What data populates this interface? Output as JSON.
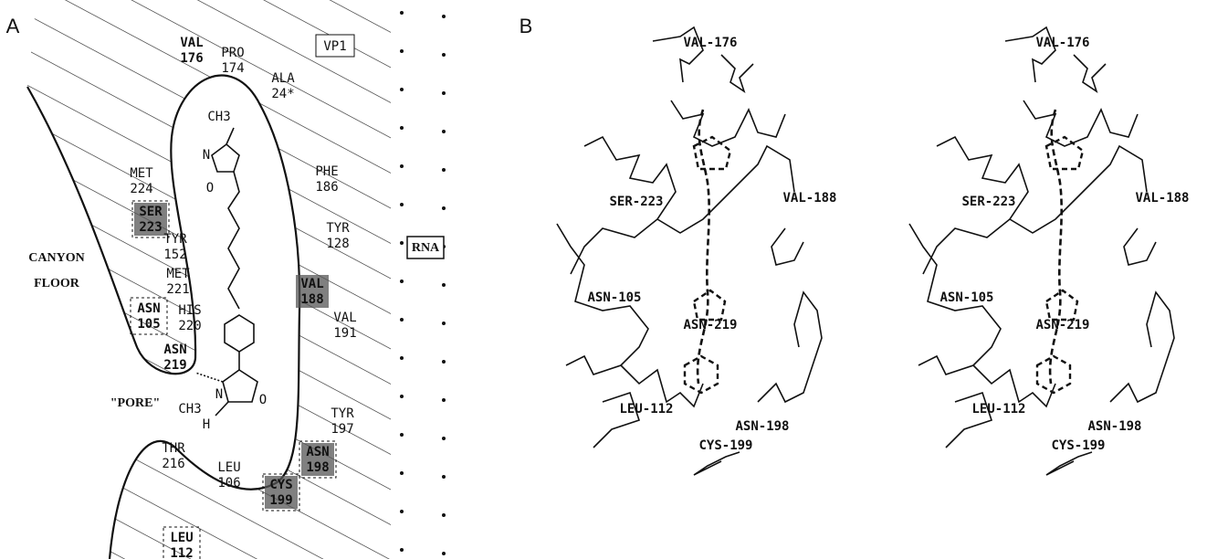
{
  "panel_a": {
    "label": "A",
    "vp1": "VP1",
    "rna": "RNA",
    "canyon_floor": [
      "CANYON",
      "FLOOR"
    ],
    "pore": "\"PORE\"",
    "residues": [
      {
        "name": "VAL",
        "number": "176"
      },
      {
        "name": "PRO",
        "number": "174"
      },
      {
        "name": "ALA",
        "number": "24*"
      },
      {
        "name": "MET",
        "number": "224"
      },
      {
        "name": "SER",
        "number": "223"
      },
      {
        "name": "TYR",
        "number": "152"
      },
      {
        "name": "MET",
        "number": "221"
      },
      {
        "name": "HIS",
        "number": "220"
      },
      {
        "name": "ASN",
        "number": "105"
      },
      {
        "name": "ASN",
        "number": "219"
      },
      {
        "name": "PHE",
        "number": "186"
      },
      {
        "name": "TYR",
        "number": "128"
      },
      {
        "name": "VAL",
        "number": "188"
      },
      {
        "name": "VAL",
        "number": "191"
      },
      {
        "name": "TYR",
        "number": "197"
      },
      {
        "name": "ASN",
        "number": "198"
      },
      {
        "name": "CYS",
        "number": "199"
      },
      {
        "name": "THR",
        "number": "216"
      },
      {
        "name": "LEU",
        "number": "106"
      },
      {
        "name": "LEU",
        "number": "112"
      }
    ],
    "atoms": [
      "CH3",
      "N",
      "O",
      "N",
      "O",
      "CH3",
      "H"
    ]
  },
  "panel_b": {
    "label": "B",
    "residues": [
      "VAL-176",
      "SER-223",
      "VAL-188",
      "ASN-105",
      "ASN-219",
      "LEU-112",
      "ASN-198",
      "CYS-199"
    ]
  }
}
